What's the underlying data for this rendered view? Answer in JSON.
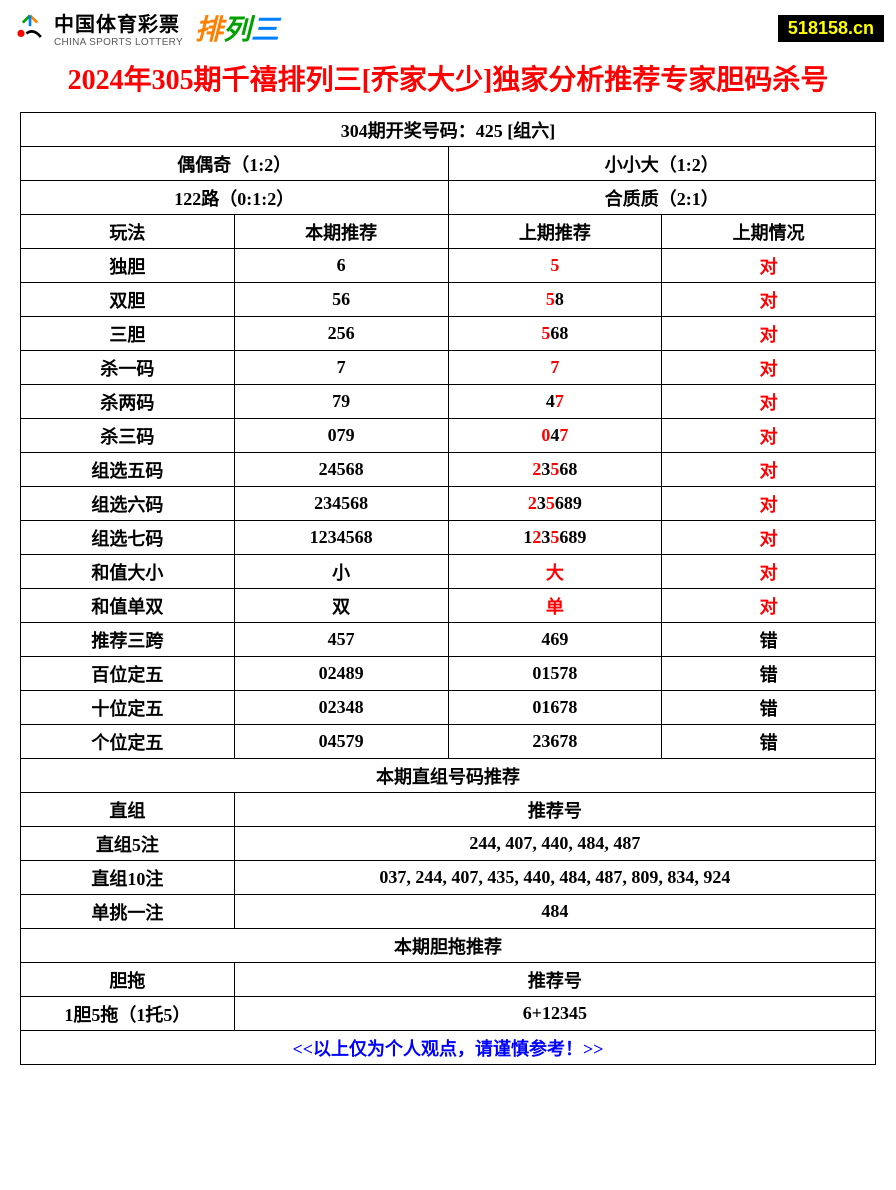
{
  "header": {
    "logo_cn": "中国体育彩票",
    "logo_en": "CHINA SPORTS LOTTERY",
    "pailie_chars": [
      "排",
      "列",
      "三"
    ],
    "site": "518158.cn"
  },
  "title": "2024年305期千禧排列三[乔家大少]独家分析推荐专家胆码杀号",
  "draw_header": "304期开奖号码：425 [组六]",
  "summary": {
    "r1c1": "偶偶奇（1:2）",
    "r1c2": "小小大（1:2）",
    "r2c1": "122路（0:1:2）",
    "r2c2": "合质质（2:1）"
  },
  "columns": {
    "c1": "玩法",
    "c2": "本期推荐",
    "c3": "上期推荐",
    "c4": "上期情况"
  },
  "rows": [
    {
      "name": "独胆",
      "cur": "6",
      "prev": [
        {
          "t": "5",
          "r": true
        }
      ],
      "res": "对",
      "res_r": true
    },
    {
      "name": "双胆",
      "cur": "56",
      "prev": [
        {
          "t": "5",
          "r": true
        },
        {
          "t": "8",
          "r": false
        }
      ],
      "res": "对",
      "res_r": true
    },
    {
      "name": "三胆",
      "cur": "256",
      "prev": [
        {
          "t": "5",
          "r": true
        },
        {
          "t": "68",
          "r": false
        }
      ],
      "res": "对",
      "res_r": true
    },
    {
      "name": "杀一码",
      "cur": "7",
      "prev": [
        {
          "t": "7",
          "r": true
        }
      ],
      "res": "对",
      "res_r": true
    },
    {
      "name": "杀两码",
      "cur": "79",
      "prev": [
        {
          "t": "4",
          "r": false
        },
        {
          "t": "7",
          "r": true
        }
      ],
      "res": "对",
      "res_r": true
    },
    {
      "name": "杀三码",
      "cur": "079",
      "prev": [
        {
          "t": "0",
          "r": true
        },
        {
          "t": "4",
          "r": false
        },
        {
          "t": "7",
          "r": true
        }
      ],
      "res": "对",
      "res_r": true
    },
    {
      "name": "组选五码",
      "cur": "24568",
      "prev": [
        {
          "t": "2",
          "r": true
        },
        {
          "t": "3",
          "r": false
        },
        {
          "t": "5",
          "r": true
        },
        {
          "t": "68",
          "r": false
        }
      ],
      "res": "对",
      "res_r": true
    },
    {
      "name": "组选六码",
      "cur": "234568",
      "prev": [
        {
          "t": "2",
          "r": true
        },
        {
          "t": "3",
          "r": false
        },
        {
          "t": "5",
          "r": true
        },
        {
          "t": "689",
          "r": false
        }
      ],
      "res": "对",
      "res_r": true
    },
    {
      "name": "组选七码",
      "cur": "1234568",
      "prev": [
        {
          "t": "1",
          "r": false
        },
        {
          "t": "2",
          "r": true
        },
        {
          "t": "3",
          "r": false
        },
        {
          "t": "5",
          "r": true
        },
        {
          "t": "689",
          "r": false
        }
      ],
      "res": "对",
      "res_r": true
    },
    {
      "name": "和值大小",
      "cur": "小",
      "prev": [
        {
          "t": "大",
          "r": true
        }
      ],
      "res": "对",
      "res_r": true
    },
    {
      "name": "和值单双",
      "cur": "双",
      "prev": [
        {
          "t": "单",
          "r": true
        }
      ],
      "res": "对",
      "res_r": true
    },
    {
      "name": "推荐三跨",
      "cur": "457",
      "prev": [
        {
          "t": "469",
          "r": false
        }
      ],
      "res": "错",
      "res_r": false
    },
    {
      "name": "百位定五",
      "cur": "02489",
      "prev": [
        {
          "t": "01578",
          "r": false
        }
      ],
      "res": "错",
      "res_r": false
    },
    {
      "name": "十位定五",
      "cur": "02348",
      "prev": [
        {
          "t": "01678",
          "r": false
        }
      ],
      "res": "错",
      "res_r": false
    },
    {
      "name": "个位定五",
      "cur": "04579",
      "prev": [
        {
          "t": "23678",
          "r": false
        }
      ],
      "res": "错",
      "res_r": false
    }
  ],
  "section2_title": "本期直组号码推荐",
  "section2_header": {
    "c1": "直组",
    "c2": "推荐号"
  },
  "section2_rows": [
    {
      "name": "直组5注",
      "val": "244, 407, 440, 484, 487"
    },
    {
      "name": "直组10注",
      "val": "037, 244, 407, 435, 440, 484, 487, 809, 834, 924"
    },
    {
      "name": "单挑一注",
      "val": "484"
    }
  ],
  "section3_title": "本期胆拖推荐",
  "section3_header": {
    "c1": "胆拖",
    "c2": "推荐号"
  },
  "section3_rows": [
    {
      "name": "1胆5拖（1托5）",
      "val": "6+12345"
    }
  ],
  "footer": "<<以上仅为个人观点，请谨慎参考！>>",
  "colors": {
    "title": "#ff0000",
    "red": "#ff0000",
    "blue": "#0000ff",
    "border": "#000000",
    "badge_bg": "#000000",
    "badge_fg": "#ffff00"
  }
}
